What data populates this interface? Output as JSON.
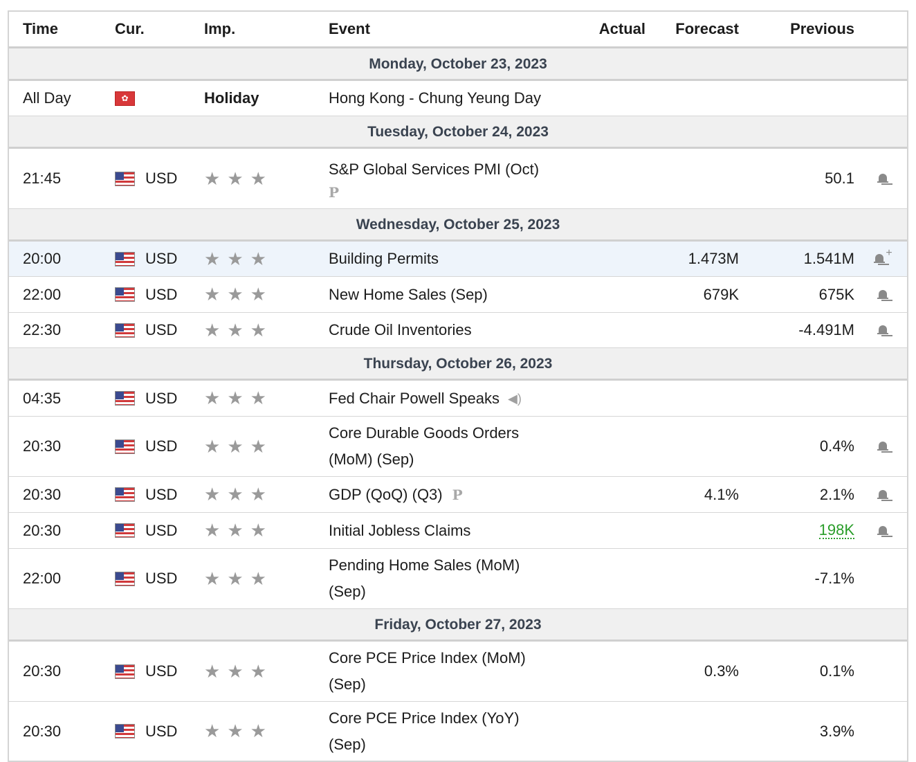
{
  "headers": {
    "time": "Time",
    "cur": "Cur.",
    "imp": "Imp.",
    "event": "Event",
    "actual": "Actual",
    "forecast": "Forecast",
    "previous": "Previous"
  },
  "days": [
    {
      "label": "Monday, October 23, 2023"
    },
    {
      "label": "Tuesday, October 24, 2023"
    },
    {
      "label": "Wednesday, October 25, 2023"
    },
    {
      "label": "Thursday, October 26, 2023"
    },
    {
      "label": "Friday, October 27, 2023"
    }
  ],
  "rows": {
    "r1": {
      "time": "All Day",
      "imp": "Holiday",
      "event": "Hong Kong - Chung Yeung Day"
    },
    "r2": {
      "time": "21:45",
      "cur": "USD",
      "event": "S&P Global Services PMI (Oct)",
      "previous": "50.1"
    },
    "r3": {
      "time": "20:00",
      "cur": "USD",
      "event": "Building Permits",
      "forecast": "1.473M",
      "previous": "1.541M"
    },
    "r4": {
      "time": "22:00",
      "cur": "USD",
      "event": "New Home Sales (Sep)",
      "forecast": "679K",
      "previous": "675K"
    },
    "r5": {
      "time": "22:30",
      "cur": "USD",
      "event": "Crude Oil Inventories",
      "previous": "-4.491M"
    },
    "r6": {
      "time": "04:35",
      "cur": "USD",
      "event": "Fed Chair Powell Speaks"
    },
    "r7": {
      "time": "20:30",
      "cur": "USD",
      "event": "Core Durable Goods Orders (MoM) (Sep)",
      "previous": "0.4%"
    },
    "r8": {
      "time": "20:30",
      "cur": "USD",
      "event": "GDP (QoQ) (Q3)",
      "forecast": "4.1%",
      "previous": "2.1%"
    },
    "r9": {
      "time": "20:30",
      "cur": "USD",
      "event": "Initial Jobless Claims",
      "previous": "198K"
    },
    "r10": {
      "time": "22:00",
      "cur": "USD",
      "event": "Pending Home Sales (MoM) (Sep)",
      "previous": "-7.1%"
    },
    "r11": {
      "time": "20:30",
      "cur": "USD",
      "event": "Core PCE Price Index (MoM) (Sep)",
      "forecast": "0.3%",
      "previous": "0.1%"
    },
    "r12": {
      "time": "20:30",
      "cur": "USD",
      "event": "Core PCE Price Index (YoY) (Sep)",
      "previous": "3.9%"
    }
  },
  "icons": {
    "star": "star-icon",
    "bell": "bell-icon",
    "flag_us": "us-flag-icon",
    "flag_hk": "hk-flag-icon",
    "preliminary": "preliminary-p-icon",
    "speech": "speaker-icon"
  },
  "colors": {
    "star": "#9a9a9a",
    "better_than_expected": "#2a9d2a",
    "date_band": "#f0f0f0",
    "highlight_row": "#eef4fb"
  }
}
